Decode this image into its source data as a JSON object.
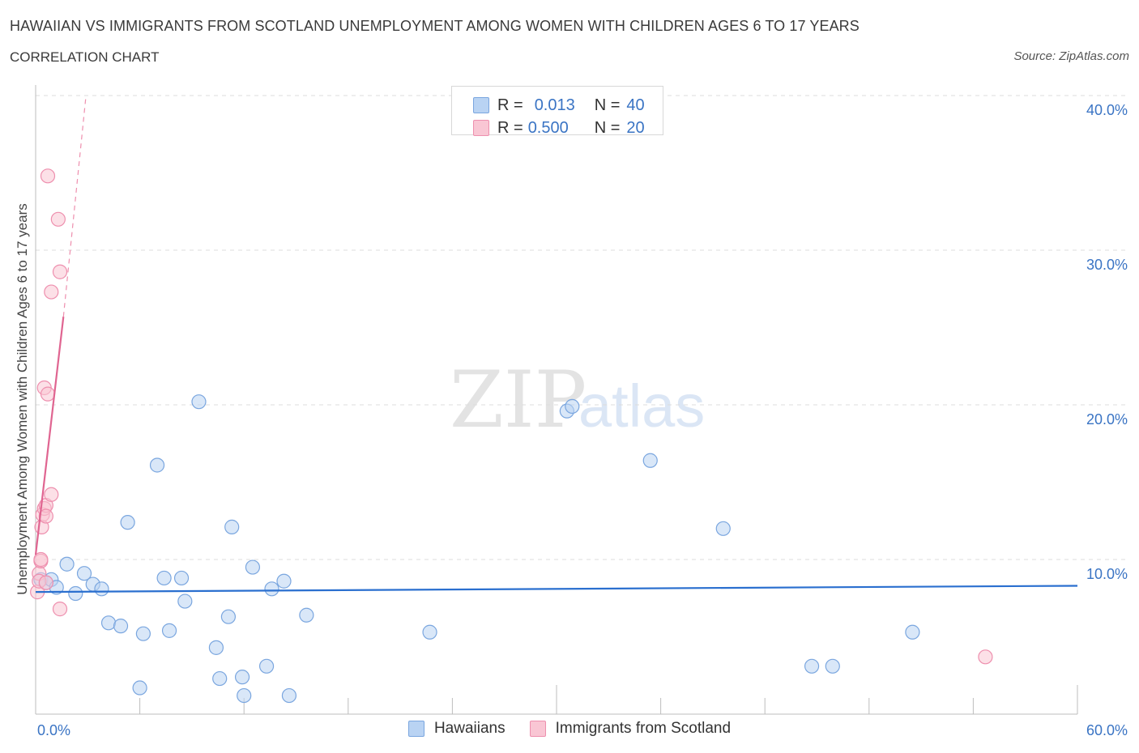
{
  "title": "HAWAIIAN VS IMMIGRANTS FROM SCOTLAND UNEMPLOYMENT AMONG WOMEN WITH CHILDREN AGES 6 TO 17 YEARS",
  "subtitle": "CORRELATION CHART",
  "source": "Source: ZipAtlas.com",
  "watermark": {
    "zip": "ZIP",
    "atlas": "atlas"
  },
  "colors": {
    "blue_fill": "#b9d3f3",
    "blue_stroke": "#7aa6df",
    "blue_line": "#2a6fcf",
    "pink_fill": "#f9c6d4",
    "pink_stroke": "#ee8fae",
    "pink_line": "#e06591",
    "tick_text": "#3a74c4",
    "grid": "#dcdcdc"
  },
  "legend_top": {
    "rows": [
      {
        "r_label": "R =",
        "r_value": "0.013",
        "n_label": "N =",
        "n_value": "40"
      },
      {
        "r_label": "R =",
        "r_value": "0.500",
        "n_label": "N =",
        "n_value": "20"
      }
    ]
  },
  "legend_bottom": {
    "items": [
      "Hawaiians",
      "Immigrants from Scotland"
    ]
  },
  "chart_data": {
    "type": "scatter",
    "title": "HAWAIIAN VS IMMIGRANTS FROM SCOTLAND UNEMPLOYMENT AMONG WOMEN WITH CHILDREN AGES 6 TO 17 YEARS",
    "subtitle": "CORRELATION CHART",
    "xlabel": "",
    "ylabel": "Unemployment Among Women with Children Ages 6 to 17 years",
    "xlim": [
      0,
      60
    ],
    "ylim": [
      0,
      40
    ],
    "x_tick_labels": [
      "0.0%",
      "60.0%"
    ],
    "y_ticks": [
      10,
      20,
      30,
      40
    ],
    "y_tick_labels": [
      "10.0%",
      "20.0%",
      "30.0%",
      "40.0%"
    ],
    "grid": true,
    "legend_position": "bottom-center",
    "series": [
      {
        "name": "Hawaiians",
        "color": "#7aa6df",
        "R": 0.013,
        "N": 40,
        "trend": {
          "x": [
            0,
            60
          ],
          "y": [
            7.9,
            8.3
          ],
          "style": "solid"
        },
        "points": [
          [
            0.3,
            8.7
          ],
          [
            0.6,
            8.5
          ],
          [
            0.9,
            8.7
          ],
          [
            1.2,
            8.2
          ],
          [
            1.8,
            9.7
          ],
          [
            2.3,
            7.8
          ],
          [
            2.8,
            9.1
          ],
          [
            3.3,
            8.4
          ],
          [
            3.8,
            8.1
          ],
          [
            4.2,
            5.9
          ],
          [
            4.9,
            5.7
          ],
          [
            5.3,
            12.4
          ],
          [
            6.0,
            1.7
          ],
          [
            6.2,
            5.2
          ],
          [
            7.0,
            16.1
          ],
          [
            7.4,
            8.8
          ],
          [
            7.7,
            5.4
          ],
          [
            8.4,
            8.8
          ],
          [
            8.6,
            7.3
          ],
          [
            9.4,
            20.2
          ],
          [
            10.4,
            4.3
          ],
          [
            10.6,
            2.3
          ],
          [
            11.1,
            6.3
          ],
          [
            11.3,
            12.1
          ],
          [
            11.9,
            2.4
          ],
          [
            12.0,
            1.2
          ],
          [
            12.5,
            9.5
          ],
          [
            13.3,
            3.1
          ],
          [
            13.6,
            8.1
          ],
          [
            14.3,
            8.6
          ],
          [
            14.6,
            1.2
          ],
          [
            15.6,
            6.4
          ],
          [
            22.7,
            5.3
          ],
          [
            30.6,
            19.6
          ],
          [
            30.9,
            19.9
          ],
          [
            35.4,
            16.4
          ],
          [
            39.6,
            12.0
          ],
          [
            44.7,
            3.1
          ],
          [
            45.9,
            3.1
          ],
          [
            50.5,
            5.3
          ]
        ]
      },
      {
        "name": "Immigrants from Scotland",
        "color": "#ee8fae",
        "R": 0.5,
        "N": 20,
        "trend": {
          "x": [
            0,
            1.6
          ],
          "y": [
            10.3,
            25.7
          ],
          "style": "solid",
          "extended_x": [
            1.6,
            2.9
          ],
          "extended_y": [
            25.7,
            40.0
          ],
          "extended_style": "dashed"
        },
        "points": [
          [
            0.1,
            7.9
          ],
          [
            0.2,
            9.1
          ],
          [
            0.2,
            8.6
          ],
          [
            0.3,
            9.9
          ],
          [
            0.3,
            10.0
          ],
          [
            0.35,
            12.1
          ],
          [
            0.4,
            12.9
          ],
          [
            0.5,
            13.3
          ],
          [
            0.5,
            21.1
          ],
          [
            0.6,
            13.5
          ],
          [
            0.6,
            12.8
          ],
          [
            0.6,
            8.5
          ],
          [
            0.7,
            34.8
          ],
          [
            0.7,
            20.7
          ],
          [
            0.9,
            27.3
          ],
          [
            0.9,
            14.2
          ],
          [
            1.3,
            32.0
          ],
          [
            1.4,
            28.6
          ],
          [
            1.4,
            6.8
          ],
          [
            54.7,
            3.7
          ]
        ]
      }
    ]
  }
}
